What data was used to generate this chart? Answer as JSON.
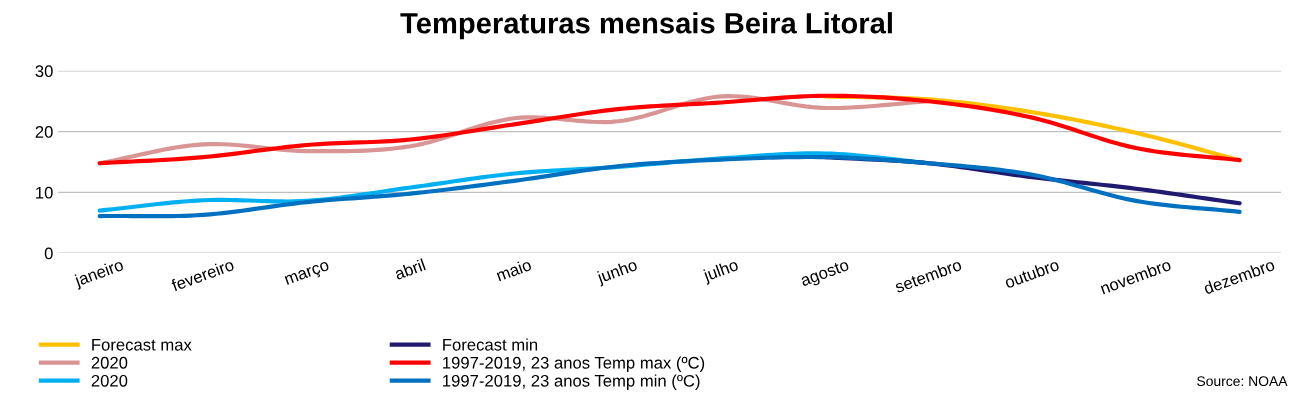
{
  "chart_data": {
    "type": "line",
    "title": "Temperaturas mensais Beira Litoral",
    "categories": [
      "janeiro",
      "fevereiro",
      "março",
      "abril",
      "maio",
      "junho",
      "julho",
      "agosto",
      "setembro",
      "outubro",
      "novembro",
      "dezembro"
    ],
    "series": [
      {
        "name": "Forecast max",
        "color": "#ffc000",
        "values": [
          null,
          null,
          null,
          null,
          null,
          null,
          null,
          25.8,
          25.3,
          23.2,
          19.8,
          15.3
        ]
      },
      {
        "name": "2020",
        "color": "#d99594",
        "values": [
          14.8,
          17.9,
          16.8,
          17.6,
          22.2,
          21.7,
          25.8,
          23.9,
          25.0,
          null,
          null,
          null
        ]
      },
      {
        "name": "2020",
        "color": "#00b0f0",
        "values": [
          7.0,
          8.7,
          8.6,
          10.8,
          13.1,
          14.2,
          15.6,
          16.4,
          14.8,
          null,
          null,
          null
        ]
      },
      {
        "name": "Forecast min",
        "color": "#201a70",
        "values": [
          null,
          null,
          null,
          null,
          null,
          null,
          null,
          15.8,
          14.8,
          12.5,
          10.6,
          8.2
        ]
      },
      {
        "name": "1997-2019, 23 anos Temp max (ºC)",
        "color": "#ff0000",
        "values": [
          14.8,
          15.8,
          17.8,
          18.7,
          21.2,
          23.7,
          24.8,
          25.9,
          25.0,
          22.3,
          17.3,
          15.3
        ]
      },
      {
        "name": "1997-2019, 23 anos Temp min (ºC)",
        "color": "#0070c0",
        "values": [
          6.1,
          6.3,
          8.4,
          9.8,
          11.9,
          14.3,
          15.4,
          15.8,
          14.8,
          12.9,
          8.6,
          6.8
        ]
      }
    ],
    "ylim": [
      0,
      30
    ],
    "yticks": [
      0,
      10,
      20,
      30
    ],
    "grid": "y",
    "legend": "bottom",
    "marker": "none",
    "line_style": "solid",
    "annotations": [
      "Source: NOAA"
    ]
  }
}
